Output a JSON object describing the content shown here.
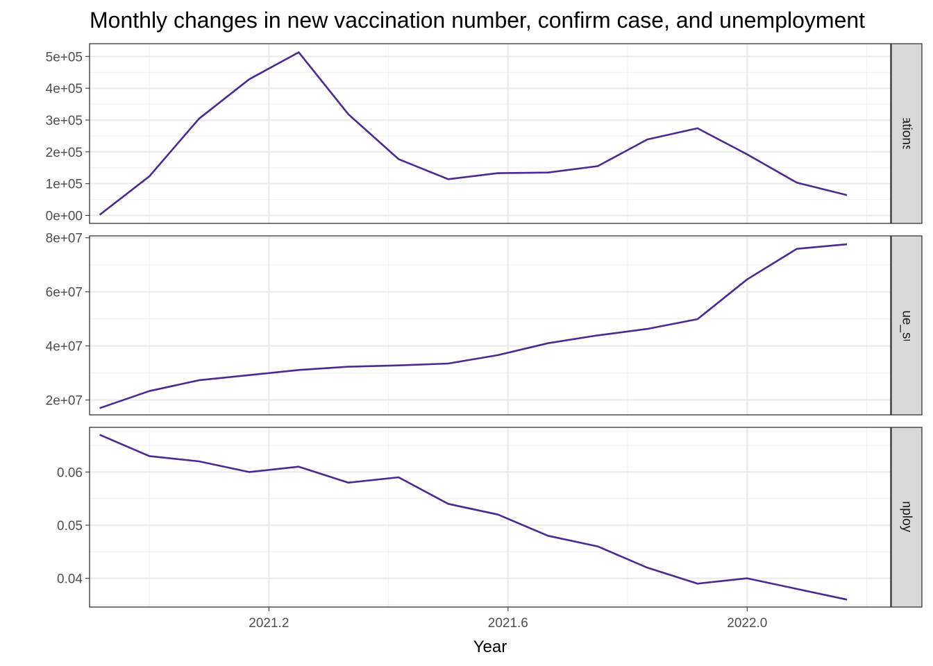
{
  "chart_data": {
    "type": "line",
    "title": "Monthly changes in new vaccination number, confirm case, and unemployment",
    "xlabel": "Year",
    "x_ticks": [
      "2021.2",
      "2021.6",
      "2022.0"
    ],
    "x_tick_values": [
      2021.2,
      2021.6,
      2022.0
    ],
    "xlim": [
      2020.9,
      2022.24
    ],
    "x": [
      2020.917,
      2021.0,
      2021.083,
      2021.167,
      2021.25,
      2021.333,
      2021.417,
      2021.5,
      2021.583,
      2021.667,
      2021.75,
      2021.833,
      2021.917,
      2022.0,
      2022.083,
      2022.167
    ],
    "line_color": "#4b2991",
    "grid": true,
    "panels": [
      {
        "strip": "daily_vaccinations_per_million",
        "strip_visible": "ily_vaccinations_per_milli",
        "y_ticks": [
          "0e+00",
          "1e+05",
          "2e+05",
          "3e+05",
          "4e+05",
          "5e+05"
        ],
        "y_tick_values": [
          0,
          100000,
          200000,
          300000,
          400000,
          500000
        ],
        "ylim": [
          -25000,
          540000
        ],
        "values": [
          2000,
          123000,
          304000,
          428000,
          513000,
          318000,
          177000,
          114000,
          133000,
          135000,
          155000,
          239000,
          274000,
          192000,
          103000,
          64000
        ]
      },
      {
        "strip": "value_sum",
        "strip_visible": "value_sum",
        "y_ticks": [
          "2e+07",
          "4e+07",
          "6e+07",
          "8e+07"
        ],
        "y_tick_values": [
          20000000,
          40000000,
          60000000,
          80000000
        ],
        "ylim": [
          14500000,
          80700000
        ],
        "values": [
          17000000,
          23300000,
          27300000,
          29200000,
          31100000,
          32300000,
          32800000,
          33500000,
          36600000,
          41000000,
          43900000,
          46300000,
          49900000,
          64600000,
          75900000,
          77600000
        ]
      },
      {
        "strip": "Unemployment",
        "strip_visible": "Unemployment",
        "y_ticks": [
          "0.04",
          "0.05",
          "0.06"
        ],
        "y_tick_values": [
          0.04,
          0.05,
          0.06
        ],
        "ylim": [
          0.0346,
          0.0684
        ],
        "values": [
          0.067,
          0.063,
          0.062,
          0.06,
          0.061,
          0.058,
          0.059,
          0.054,
          0.052,
          0.048,
          0.046,
          0.042,
          0.039,
          0.04,
          0.038,
          0.036
        ]
      }
    ]
  }
}
